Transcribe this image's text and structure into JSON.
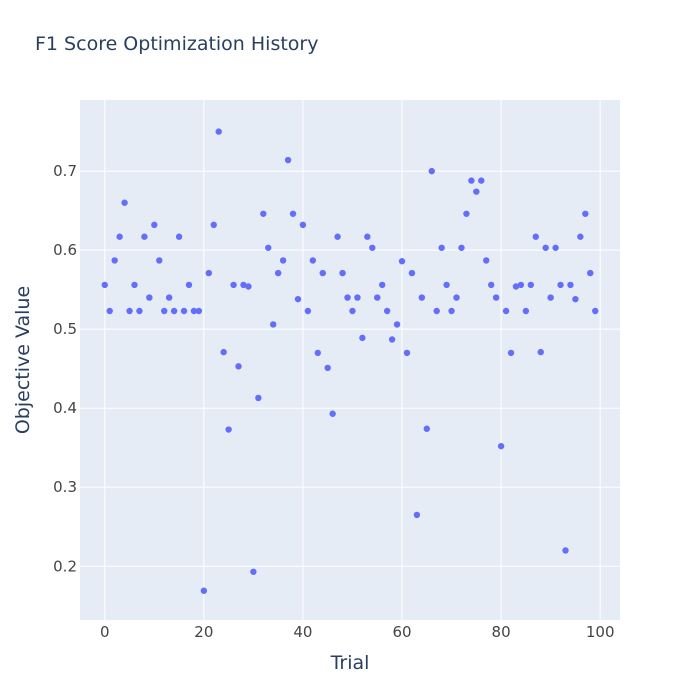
{
  "chart_data": {
    "type": "scatter",
    "title": "F1 Score Optimization History",
    "xlabel": "Trial",
    "ylabel": "Objective Value",
    "xlim": [
      -5,
      104
    ],
    "ylim": [
      0.132,
      0.79
    ],
    "xticks": [
      0,
      20,
      40,
      60,
      80,
      100
    ],
    "yticks": [
      0.2,
      0.3,
      0.4,
      0.5,
      0.6,
      0.7
    ],
    "grid": true,
    "legend": "none",
    "colors": {
      "plot_bg": "#e5ecf6",
      "grid": "#ffffff",
      "marker": "#636efa",
      "text": "#2a3f5f",
      "tick_text": "#444444"
    },
    "series": [
      {
        "x": [
          0,
          1,
          2,
          3,
          4,
          5,
          6,
          7,
          8,
          9,
          10,
          11,
          12,
          13,
          14,
          15,
          16,
          17,
          18,
          19,
          20,
          21,
          22,
          23,
          24,
          25,
          26,
          27,
          28,
          29,
          30,
          31,
          32,
          33,
          34,
          35,
          36,
          37,
          38,
          39,
          40,
          41,
          42,
          43,
          44,
          45,
          46,
          47,
          48,
          49,
          50,
          51,
          52,
          53,
          54,
          55,
          56,
          57,
          58,
          59,
          60,
          61,
          62,
          63,
          64,
          65,
          66,
          67,
          68,
          69,
          70,
          71,
          72,
          73,
          74,
          75,
          76,
          77,
          78,
          79,
          80,
          81,
          82,
          83,
          84,
          85,
          86,
          87,
          88,
          89,
          90,
          91,
          92,
          93,
          94,
          95,
          96,
          97,
          98,
          99
        ],
        "y": [
          0.556,
          0.523,
          0.587,
          0.617,
          0.66,
          0.523,
          0.556,
          0.523,
          0.617,
          0.54,
          0.632,
          0.587,
          0.523,
          0.54,
          0.523,
          0.617,
          0.523,
          0.556,
          0.523,
          0.523,
          0.169,
          0.571,
          0.632,
          0.75,
          0.471,
          0.373,
          0.556,
          0.453,
          0.556,
          0.554,
          0.193,
          0.413,
          0.646,
          0.603,
          0.506,
          0.571,
          0.587,
          0.714,
          0.646,
          0.538,
          0.632,
          0.523,
          0.587,
          0.47,
          0.571,
          0.451,
          0.393,
          0.617,
          0.571,
          0.54,
          0.523,
          0.54,
          0.489,
          0.617,
          0.603,
          0.54,
          0.556,
          0.523,
          0.487,
          0.506,
          0.586,
          0.47,
          0.571,
          0.265,
          0.54,
          0.374,
          0.7,
          0.523,
          0.603,
          0.556,
          0.523,
          0.54,
          0.603,
          0.646,
          0.688,
          0.674,
          0.688,
          0.587,
          0.556,
          0.54,
          0.352,
          0.523,
          0.47,
          0.554,
          0.556,
          0.523,
          0.556,
          0.617,
          0.471,
          0.603,
          0.54,
          0.603,
          0.556,
          0.22,
          0.556,
          0.538,
          0.617,
          0.646,
          0.571,
          0.523
        ]
      }
    ]
  }
}
